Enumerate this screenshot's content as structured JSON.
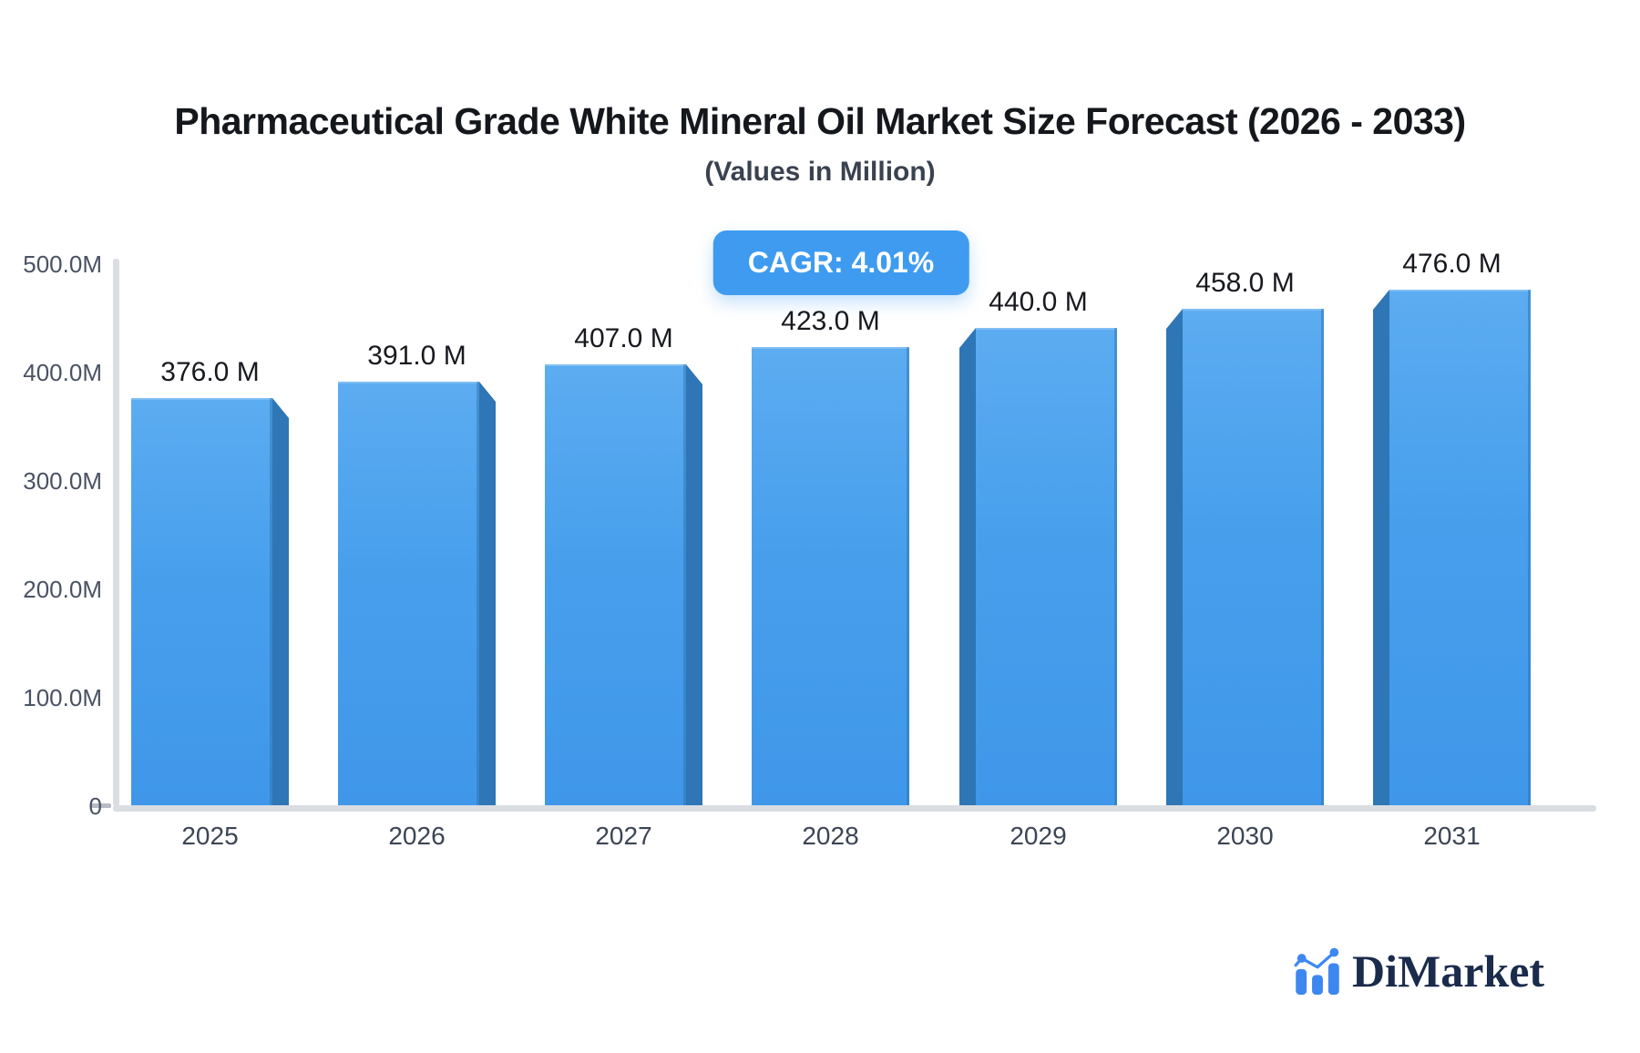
{
  "header": {
    "title": "Pharmaceutical Grade White Mineral Oil Market Size Forecast (2026 - 2033)",
    "subtitle": "(Values in Million)"
  },
  "badge": {
    "label": "CAGR: 4.01%",
    "background_color": "#3E9BF0",
    "text_color": "#ffffff"
  },
  "chart_data": {
    "type": "bar",
    "categories": [
      "2025",
      "2026",
      "2027",
      "2028",
      "2029",
      "2030",
      "2031"
    ],
    "values": [
      376,
      391,
      407,
      423,
      440,
      458,
      476
    ],
    "bar_labels": [
      "376.0 M",
      "391.0 M",
      "407.0 M",
      "423.0 M",
      "440.0 M",
      "458.0 M",
      "476.0 M"
    ],
    "unit": "Million",
    "title": "Pharmaceutical Grade White Mineral Oil Market Size Forecast (2026 - 2033)",
    "xlabel": "",
    "ylabel": "",
    "y_ticks": [
      "500.0M",
      "400.0M",
      "300.0M",
      "200.0M",
      "100.0M",
      "0"
    ],
    "ylim": [
      0,
      500
    ],
    "grid": false,
    "legend": false,
    "bar_color_top": "#5CACF1",
    "bar_color_bottom": "#4097EA",
    "bar_side_color": "#2E76B5",
    "style": "3d-bevel"
  },
  "logo": {
    "text": "DiMarket",
    "icon": "bar-chart-logo-icon",
    "icon_color": "#3d87f1",
    "text_color": "#1a2b4c"
  }
}
